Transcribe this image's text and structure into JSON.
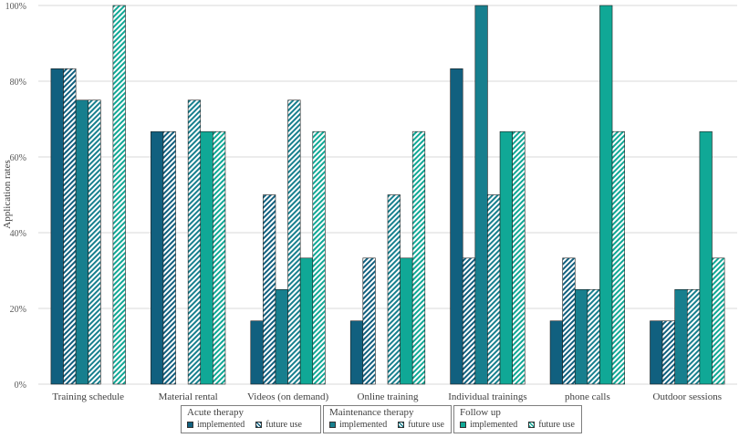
{
  "chart_data": {
    "type": "bar",
    "ylabel": "Application rates",
    "xlabel": "",
    "ylim": [
      0,
      100
    ],
    "yticks": [
      "0%",
      "20%",
      "40%",
      "60%",
      "80%",
      "100%"
    ],
    "categories": [
      "Training schedule",
      "Material rental",
      "Videos (on demand)",
      "Online training",
      "Individual trainings",
      "phone calls",
      "Outdoor sessions"
    ],
    "series": [
      {
        "name": "Acute therapy - implemented",
        "group": "Acute therapy",
        "kind": "implemented",
        "color": "#11607f",
        "values": [
          83.3,
          66.7,
          16.7,
          16.7,
          83.3,
          16.7,
          16.7
        ]
      },
      {
        "name": "Acute therapy - future use",
        "group": "Acute therapy",
        "kind": "future use",
        "color": "#11607f",
        "values": [
          83.3,
          66.7,
          50,
          33.3,
          33.3,
          33.3,
          16.7
        ]
      },
      {
        "name": "Maintenance therapy - implemented",
        "group": "Maintenance therapy",
        "kind": "implemented",
        "color": "#177f8e",
        "values": [
          75,
          0,
          25,
          0,
          100,
          25,
          25
        ]
      },
      {
        "name": "Maintenance therapy - future use",
        "group": "Maintenance therapy",
        "kind": "future use",
        "color": "#177f8e",
        "values": [
          75,
          75,
          75,
          50,
          50,
          25,
          25
        ]
      },
      {
        "name": "Follow up - implemented",
        "group": "Follow up",
        "kind": "implemented",
        "color": "#10a896",
        "values": [
          0,
          66.7,
          33.3,
          33.3,
          66.7,
          100,
          66.7
        ]
      },
      {
        "name": "Follow up - future use",
        "group": "Follow up",
        "kind": "future use",
        "color": "#10a896",
        "values": [
          100,
          66.7,
          66.7,
          66.7,
          66.7,
          66.7,
          33.3
        ]
      }
    ],
    "legend": [
      {
        "title": "Acute therapy",
        "implemented": "implemented",
        "future": "future use",
        "color": "#11607f"
      },
      {
        "title": "Maintenance therapy",
        "implemented": "implemented",
        "future": "future use",
        "color": "#177f8e"
      },
      {
        "title": "Follow up",
        "implemented": "implemented",
        "future": "future use",
        "color": "#10a896"
      }
    ],
    "legend_position": "bottom-center",
    "grid": true
  }
}
